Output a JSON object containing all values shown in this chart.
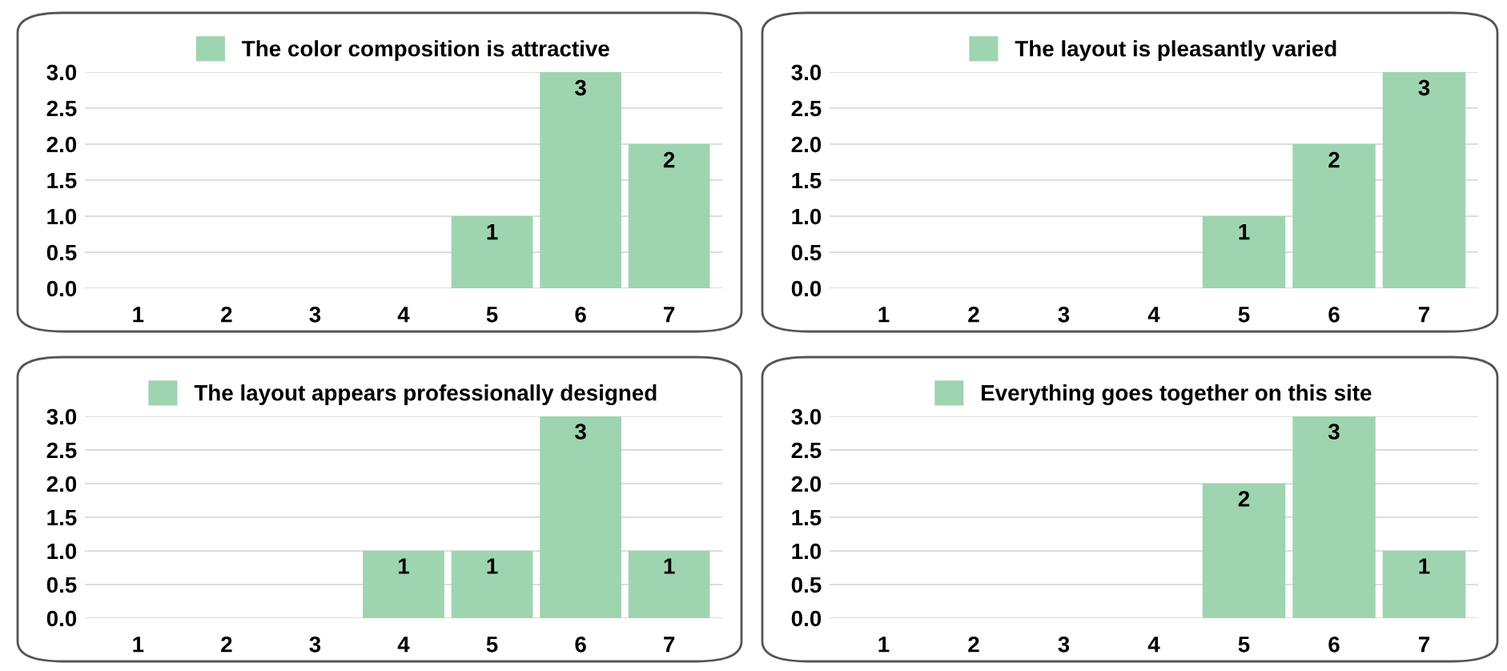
{
  "chart_data": [
    {
      "type": "bar",
      "categories": [
        "1",
        "2",
        "3",
        "4",
        "5",
        "6",
        "7"
      ],
      "series": [
        {
          "name": "The color composition is attractive",
          "color": "#9fd4b0",
          "values": [
            0,
            0,
            0,
            0,
            1,
            3,
            2
          ],
          "value_labels": [
            null,
            null,
            null,
            null,
            "1",
            "3",
            "2"
          ]
        }
      ],
      "ylim": [
        0,
        3
      ],
      "yticks": [
        {
          "value": 0,
          "label": "0.0"
        },
        {
          "value": 0.5,
          "label": "0.5"
        },
        {
          "value": 1,
          "label": "1.0"
        },
        {
          "value": 1.5,
          "label": "1.5"
        },
        {
          "value": 2,
          "label": "2.0"
        },
        {
          "value": 2.5,
          "label": "2.5"
        },
        {
          "value": 3,
          "label": "3.0"
        }
      ],
      "grid": "y",
      "legend": "top"
    },
    {
      "type": "bar",
      "categories": [
        "1",
        "2",
        "3",
        "4",
        "5",
        "6",
        "7"
      ],
      "series": [
        {
          "name": "The layout is pleasantly varied",
          "color": "#9fd4b0",
          "values": [
            0,
            0,
            0,
            0,
            1,
            2,
            3
          ],
          "value_labels": [
            null,
            null,
            null,
            null,
            "1",
            "2",
            "3"
          ]
        }
      ],
      "ylim": [
        0,
        3
      ],
      "yticks": [
        {
          "value": 0,
          "label": "0.0"
        },
        {
          "value": 0.5,
          "label": "0.5"
        },
        {
          "value": 1,
          "label": "1.0"
        },
        {
          "value": 1.5,
          "label": "1.5"
        },
        {
          "value": 2,
          "label": "2.0"
        },
        {
          "value": 2.5,
          "label": "2.5"
        },
        {
          "value": 3,
          "label": "3.0"
        }
      ],
      "grid": "y",
      "legend": "top"
    },
    {
      "type": "bar",
      "categories": [
        "1",
        "2",
        "3",
        "4",
        "5",
        "6",
        "7"
      ],
      "series": [
        {
          "name": "The layout appears professionally designed",
          "color": "#9fd4b0",
          "values": [
            0,
            0,
            0,
            1,
            1,
            3,
            1
          ],
          "value_labels": [
            null,
            null,
            null,
            "1",
            "1",
            "3",
            "1"
          ]
        }
      ],
      "ylim": [
        0,
        3
      ],
      "yticks": [
        {
          "value": 0,
          "label": "0.0"
        },
        {
          "value": 0.5,
          "label": "0.5"
        },
        {
          "value": 1,
          "label": "1.0"
        },
        {
          "value": 1.5,
          "label": "1.5"
        },
        {
          "value": 2,
          "label": "2.0"
        },
        {
          "value": 2.5,
          "label": "2.5"
        },
        {
          "value": 3,
          "label": "3.0"
        }
      ],
      "grid": "y",
      "legend": "top"
    },
    {
      "type": "bar",
      "categories": [
        "1",
        "2",
        "3",
        "4",
        "5",
        "6",
        "7"
      ],
      "series": [
        {
          "name": "Everything goes together on this site",
          "color": "#9fd4b0",
          "values": [
            0,
            0,
            0,
            0,
            2,
            3,
            1
          ],
          "value_labels": [
            null,
            null,
            null,
            null,
            "2",
            "3",
            "1"
          ]
        }
      ],
      "ylim": [
        0,
        3
      ],
      "yticks": [
        {
          "value": 0,
          "label": "0.0"
        },
        {
          "value": 0.5,
          "label": "0.5"
        },
        {
          "value": 1,
          "label": "1.0"
        },
        {
          "value": 1.5,
          "label": "1.5"
        },
        {
          "value": 2,
          "label": "2.0"
        },
        {
          "value": 2.5,
          "label": "2.5"
        },
        {
          "value": 3,
          "label": "3.0"
        }
      ],
      "grid": "y",
      "legend": "top"
    }
  ]
}
